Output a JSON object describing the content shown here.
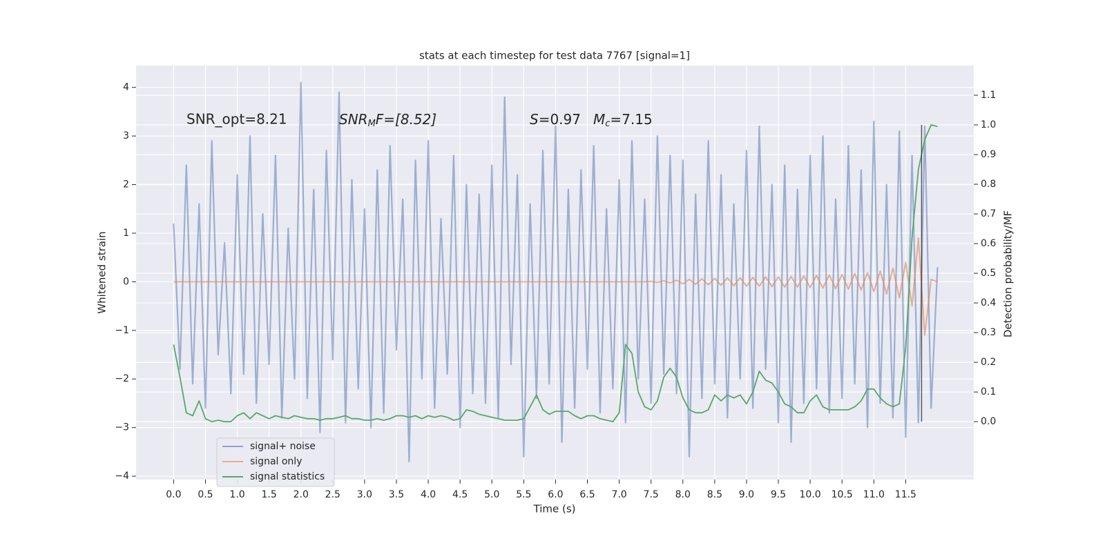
{
  "chart_data": {
    "type": "line",
    "title": "stats at each timestep for test data 7767 [signal=1]",
    "xlabel": "Time (s)",
    "ylabel": "Whitened strain",
    "y2label": "Detection probability/MF",
    "annotations": [
      {
        "text": "SNR_opt=8.21"
      },
      {
        "text": "SNR",
        "sub": "M",
        "tail": "F=[8.52]",
        "italic": true
      },
      {
        "text": "S",
        "tail": "=0.97",
        "italic": true
      },
      {
        "text": "M",
        "sub": "c",
        "tail": "=7.15",
        "italic": true
      }
    ],
    "vline_x": 11.75,
    "x": [
      0,
      0.1,
      0.2,
      0.3,
      0.4,
      0.5,
      0.6,
      0.7,
      0.8,
      0.9,
      1,
      1.1,
      1.2,
      1.3,
      1.4,
      1.5,
      1.6,
      1.7,
      1.8,
      1.9,
      2,
      2.1,
      2.2,
      2.3,
      2.4,
      2.5,
      2.6,
      2.7,
      2.8,
      2.9,
      3,
      3.1,
      3.2,
      3.3,
      3.4,
      3.5,
      3.6,
      3.7,
      3.8,
      3.9,
      4,
      4.1,
      4.2,
      4.3,
      4.4,
      4.5,
      4.6,
      4.7,
      4.8,
      4.9,
      5,
      5.1,
      5.2,
      5.3,
      5.4,
      5.5,
      5.6,
      5.7,
      5.8,
      5.9,
      6,
      6.1,
      6.2,
      6.3,
      6.4,
      6.5,
      6.6,
      6.7,
      6.8,
      6.9,
      7,
      7.1,
      7.2,
      7.3,
      7.4,
      7.5,
      7.6,
      7.7,
      7.8,
      7.9,
      8,
      8.1,
      8.2,
      8.3,
      8.4,
      8.5,
      8.6,
      8.7,
      8.8,
      8.9,
      9,
      9.1,
      9.2,
      9.3,
      9.4,
      9.5,
      9.6,
      9.7,
      9.8,
      9.9,
      10,
      10.1,
      10.2,
      10.3,
      10.4,
      10.5,
      10.6,
      10.7,
      10.8,
      10.9,
      11,
      11.1,
      11.2,
      11.3,
      11.4,
      11.5,
      11.6,
      11.7,
      11.8,
      11.9,
      12
    ],
    "series": [
      {
        "name": "signal+ noise",
        "color": "#4c72b0",
        "values": [
          1.2,
          -1.8,
          2.4,
          -2.1,
          1.6,
          -2.6,
          2.9,
          -1.5,
          0.8,
          -2.3,
          2.2,
          -1.9,
          3.0,
          -2.5,
          1.4,
          -1.7,
          2.6,
          -2.8,
          1.1,
          -2.0,
          4.1,
          -2.4,
          1.9,
          -3.1,
          2.7,
          -1.6,
          3.9,
          -2.9,
          2.1,
          -2.2,
          1.5,
          -3.0,
          2.3,
          -2.7,
          2.8,
          -1.4,
          1.7,
          -3.7,
          2.5,
          -2.0,
          2.9,
          -2.6,
          1.3,
          -1.9,
          2.6,
          -3.0,
          2.0,
          -2.3,
          1.8,
          -2.5,
          2.4,
          -2.8,
          3.8,
          -1.7,
          2.2,
          -3.6,
          1.6,
          -2.4,
          2.7,
          -2.1,
          3.2,
          -3.3,
          1.9,
          -2.6,
          2.3,
          -1.8,
          2.8,
          -2.7,
          1.5,
          -2.2,
          2.1,
          -2.9,
          2.9,
          -2.0,
          1.7,
          -2.5,
          3.0,
          -1.9,
          2.6,
          -2.3,
          2.5,
          -3.6,
          1.8,
          -2.4,
          2.9,
          -2.1,
          2.2,
          -2.8,
          1.6,
          -2.0,
          2.7,
          -2.6,
          3.2,
          -1.8,
          2.0,
          -2.9,
          2.4,
          -3.3,
          1.9,
          -2.5,
          2.6,
          -2.2,
          3.0,
          -2.7,
          1.7,
          -2.4,
          2.8,
          -2.1,
          2.3,
          -3.0,
          3.3,
          -2.5,
          2.0,
          -2.8,
          3.1,
          -3.2,
          2.6,
          -2.9,
          3.2,
          -2.6,
          0.3
        ]
      },
      {
        "name": "signal only",
        "color": "#dd8452",
        "values": [
          0,
          0,
          0,
          0,
          0,
          0,
          0,
          0,
          0,
          0,
          0,
          0,
          0,
          0,
          0,
          0,
          0,
          0,
          0,
          0,
          0,
          0,
          0,
          0,
          0,
          0,
          0,
          0,
          0,
          0,
          0,
          0,
          0,
          0,
          0,
          0,
          0,
          0,
          0,
          0,
          0,
          0,
          0,
          0,
          0,
          0,
          0,
          0,
          0,
          0,
          0,
          0,
          0,
          0,
          0,
          0,
          0,
          0,
          0,
          0,
          0,
          0,
          0,
          0,
          0,
          0,
          0,
          0,
          0,
          0,
          0,
          0,
          0,
          0,
          0,
          0.01,
          -0.01,
          0.02,
          -0.02,
          0.03,
          -0.04,
          0.05,
          -0.05,
          0.06,
          -0.06,
          0.07,
          -0.07,
          0.08,
          -0.08,
          0.08,
          -0.09,
          0.09,
          -0.09,
          0.1,
          -0.1,
          0.1,
          -0.11,
          0.11,
          -0.11,
          0.12,
          -0.12,
          0.13,
          -0.13,
          0.14,
          -0.14,
          0.15,
          -0.15,
          0.17,
          -0.17,
          0.19,
          -0.2,
          0.22,
          -0.25,
          0.28,
          -0.33,
          0.4,
          -0.5,
          0.9,
          -1.1,
          0.05,
          0.0
        ]
      },
      {
        "name": "signal statistics",
        "color": "#55a868",
        "axis": "y2",
        "values": [
          0.26,
          0.15,
          0.03,
          0.02,
          0.07,
          0.01,
          0.0,
          0.005,
          0.0,
          0.0,
          0.02,
          0.03,
          0.01,
          0.03,
          0.02,
          0.01,
          0.02,
          0.015,
          0.01,
          0.02,
          0.015,
          0.01,
          0.01,
          0.005,
          0.01,
          0.01,
          0.015,
          0.02,
          0.01,
          0.01,
          0.005,
          0.005,
          0.01,
          0.005,
          0.01,
          0.02,
          0.02,
          0.015,
          0.02,
          0.01,
          0.02,
          0.015,
          0.02,
          0.015,
          0.005,
          0.01,
          0.04,
          0.035,
          0.025,
          0.02,
          0.015,
          0.01,
          0.005,
          0.005,
          0.005,
          0.01,
          0.05,
          0.09,
          0.04,
          0.025,
          0.035,
          0.035,
          0.035,
          0.02,
          0.01,
          0.02,
          0.02,
          0.01,
          0.005,
          0.0,
          0.03,
          0.26,
          0.23,
          0.1,
          0.05,
          0.04,
          0.07,
          0.15,
          0.18,
          0.15,
          0.08,
          0.04,
          0.03,
          0.03,
          0.04,
          0.09,
          0.07,
          0.09,
          0.08,
          0.09,
          0.06,
          0.1,
          0.17,
          0.14,
          0.13,
          0.1,
          0.06,
          0.05,
          0.03,
          0.03,
          0.07,
          0.09,
          0.05,
          0.04,
          0.04,
          0.04,
          0.04,
          0.05,
          0.07,
          0.11,
          0.11,
          0.08,
          0.06,
          0.05,
          0.06,
          0.25,
          0.62,
          0.85,
          0.95,
          1.0,
          0.995
        ]
      }
    ],
    "xlim": [
      -0.59,
      12.57
    ],
    "xticks": [
      {
        "value": 0,
        "label": "0.0"
      },
      0.5,
      {
        "value": 1,
        "label": "1.0"
      },
      1.5,
      {
        "value": 2,
        "label": "2.0"
      },
      2.5,
      {
        "value": 3,
        "label": "3.0"
      },
      3.5,
      {
        "value": 4,
        "label": "4.0"
      },
      4.5,
      {
        "value": 5,
        "label": "5.0"
      },
      5.5,
      {
        "value": 6,
        "label": "6.0"
      },
      6.5,
      {
        "value": 7,
        "label": "7.0"
      },
      7.5,
      {
        "value": 8,
        "label": "8.0"
      },
      8.5,
      {
        "value": 9,
        "label": "9.0"
      },
      9.5,
      {
        "value": 10,
        "label": "10.0"
      },
      10.5,
      {
        "value": 11,
        "label": "11.0"
      },
      11.5
    ],
    "ylim": [
      -4.07,
      4.45
    ],
    "yticks": [
      {
        "value": -4,
        "label": "−4"
      },
      {
        "value": -3,
        "label": "−3"
      },
      {
        "value": -2,
        "label": "−2"
      },
      {
        "value": -1,
        "label": "−1"
      },
      0,
      1,
      2,
      3,
      4
    ],
    "y2lim": [
      -0.195,
      1.2
    ],
    "y2ticks": [
      {
        "value": 0,
        "label": "0.0"
      },
      0.1,
      0.2,
      0.3,
      0.4,
      0.5,
      0.6,
      0.7,
      0.8,
      0.9,
      {
        "value": 1,
        "label": "1.0"
      },
      1.1
    ],
    "grid": true,
    "legend": "lower left"
  }
}
